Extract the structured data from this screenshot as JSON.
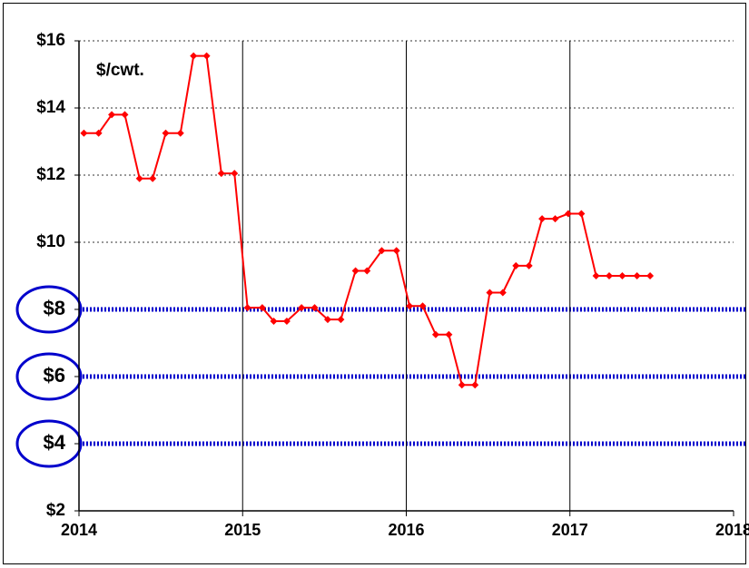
{
  "chart_data": {
    "type": "line",
    "annotation": "$/cwt.",
    "x": [
      2014.03,
      2014.12,
      2014.2,
      2014.28,
      2014.37,
      2014.45,
      2014.53,
      2014.62,
      2014.7,
      2014.78,
      2014.87,
      2014.95,
      2015.03,
      2015.12,
      2015.19,
      2015.27,
      2015.36,
      2015.44,
      2015.52,
      2015.6,
      2015.69,
      2015.76,
      2015.85,
      2015.94,
      2016.02,
      2016.1,
      2016.18,
      2016.26,
      2016.34,
      2016.42,
      2016.51,
      2016.59,
      2016.67,
      2016.75,
      2016.83,
      2016.91,
      2016.99,
      2017.07,
      2017.16,
      2017.24,
      2017.32,
      2017.41,
      2017.49
    ],
    "series": [
      {
        "color": "#ff0000",
        "values": [
          13.25,
          13.25,
          13.8,
          13.8,
          11.9,
          11.9,
          13.25,
          13.25,
          15.55,
          15.55,
          12.05,
          12.05,
          8.05,
          8.05,
          7.65,
          7.65,
          8.05,
          8.05,
          7.7,
          7.7,
          9.15,
          9.15,
          9.75,
          9.75,
          8.1,
          8.1,
          7.25,
          7.25,
          5.75,
          5.75,
          8.5,
          8.5,
          9.3,
          9.3,
          10.7,
          10.7,
          10.85,
          10.85,
          9,
          9,
          9,
          9,
          9
        ]
      }
    ],
    "reference_lines": [
      8,
      6,
      4
    ],
    "reference_color": "#0000cc",
    "xlim": [
      2014,
      2018
    ],
    "xticks": [
      2014,
      2015,
      2016,
      2017,
      2018
    ],
    "ylim": [
      2,
      16
    ],
    "yticks": [
      {
        "value": 2,
        "label": "$2"
      },
      {
        "value": 4,
        "label": "$4"
      },
      {
        "value": 6,
        "label": "$6"
      },
      {
        "value": 8,
        "label": "$8"
      },
      {
        "value": 10,
        "label": "$10"
      },
      {
        "value": 12,
        "label": "$12"
      },
      {
        "value": 14,
        "label": "$14"
      },
      {
        "value": 16,
        "label": "$16"
      }
    ],
    "grid": true
  }
}
